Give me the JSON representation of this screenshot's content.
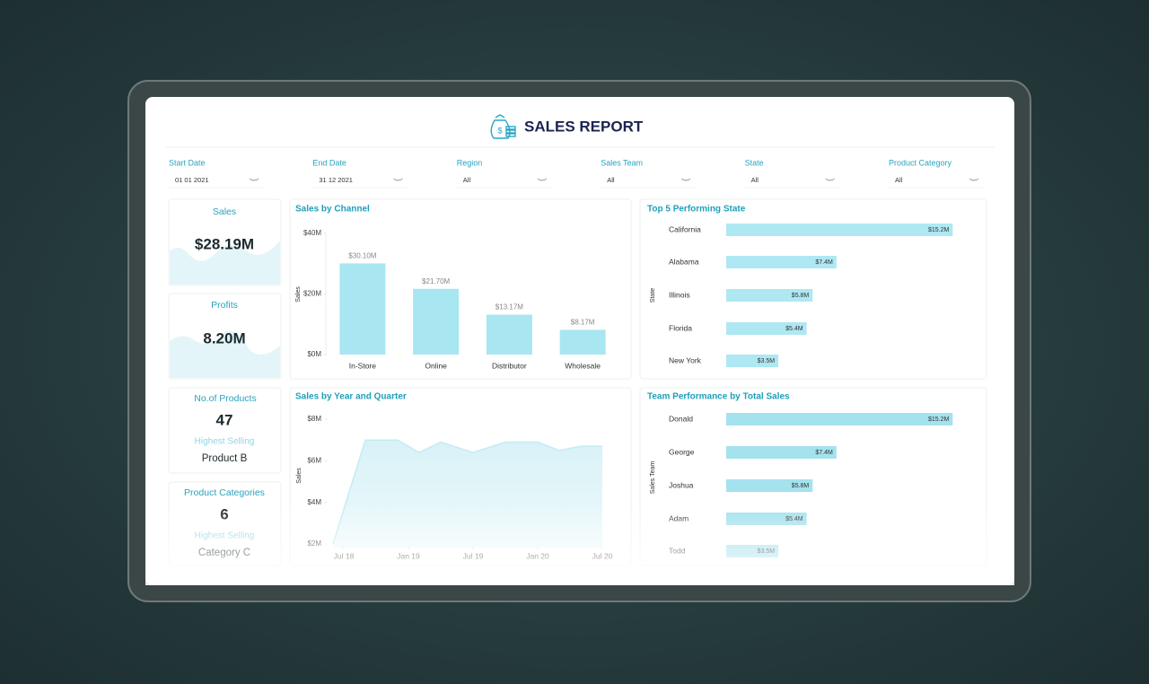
{
  "header": {
    "title": "SALES REPORT"
  },
  "filters": [
    {
      "label": "Start Date",
      "value": "01 01 2021"
    },
    {
      "label": "End Date",
      "value": "31 12 2021"
    },
    {
      "label": "Region",
      "value": "All"
    },
    {
      "label": "Sales Team",
      "value": "All"
    },
    {
      "label": "State",
      "value": "All"
    },
    {
      "label": "Product Category",
      "value": "All"
    }
  ],
  "kpis": [
    {
      "label": "Sales",
      "value": "$28.19M"
    },
    {
      "label": "Profits",
      "value": "8.20M"
    },
    {
      "label": "No.of Products",
      "value": "47",
      "sub_label": "Highest Selling",
      "sub_value": "Product B"
    },
    {
      "label": "Product Categories",
      "value": "6",
      "sub_label": "Highest Selling",
      "sub_value": "Category C"
    }
  ],
  "chart_data": [
    {
      "type": "bar",
      "title": "Sales by Channel",
      "y_label": "Sales",
      "categories": [
        "In-Store",
        "Online",
        "Distributor",
        "Wholesale"
      ],
      "values": [
        30.1,
        21.7,
        13.17,
        8.17
      ],
      "value_labels": [
        "$30.10M",
        "$21.70M",
        "$13.17M",
        "$8.17M"
      ],
      "color": "#a8e6f2",
      "ylim": [
        0,
        40
      ],
      "yticks": [
        {
          "value": 0,
          "label": "$0M"
        },
        {
          "value": 20,
          "label": "$20M"
        },
        {
          "value": 40,
          "label": "$40M"
        }
      ]
    },
    {
      "type": "hbar",
      "title": "Top 5 Performing State",
      "y_label": "State",
      "categories": [
        "California",
        "Alabama",
        "Illinois",
        "Florida",
        "New York"
      ],
      "values": [
        15.2,
        7.4,
        5.8,
        5.4,
        3.5
      ],
      "value_labels": [
        "$15.2M",
        "$7.4M",
        "$5.8M",
        "$5.4M",
        "$3.5M"
      ],
      "color": "#aee8f3"
    },
    {
      "type": "area",
      "title": "Sales by Year and Quarter",
      "y_label": "Sales",
      "x": [
        "2018-06",
        "2018-09",
        "2018-12",
        "2019-02",
        "2019-04",
        "2019-07",
        "2019-10",
        "2020-01",
        "2020-03",
        "2020-05",
        "2020-07"
      ],
      "values": [
        2.0,
        7.0,
        7.0,
        6.4,
        6.9,
        6.4,
        6.9,
        6.9,
        6.5,
        6.7,
        6.7
      ],
      "color": "#c4ecf4",
      "xlim": [
        "2018-06",
        "2020-07"
      ],
      "xticks": [
        {
          "value": "2018-07",
          "label": "Jul 18"
        },
        {
          "value": "2019-01",
          "label": "Jan 19"
        },
        {
          "value": "2019-07",
          "label": "Jul 19"
        },
        {
          "value": "2020-01",
          "label": "Jan 20"
        },
        {
          "value": "2020-07",
          "label": "Jul 20"
        }
      ],
      "ylim": [
        2,
        8
      ],
      "yticks": [
        {
          "value": 2,
          "label": "$2M"
        },
        {
          "value": 4,
          "label": "$4M"
        },
        {
          "value": 6,
          "label": "$6M"
        },
        {
          "value": 8,
          "label": "$8M"
        }
      ]
    },
    {
      "type": "hbar",
      "title": "Team Performance by Total Sales",
      "y_label": "Sales Team",
      "categories": [
        "Donald",
        "George",
        "Joshua",
        "Adam",
        "Todd"
      ],
      "values": [
        15.2,
        7.4,
        5.8,
        5.4,
        3.5
      ],
      "value_labels": [
        "$15.2M",
        "$7.4M",
        "$5.8M",
        "$5.4M",
        "$3.5M"
      ],
      "color": "#a4e2ee"
    }
  ]
}
